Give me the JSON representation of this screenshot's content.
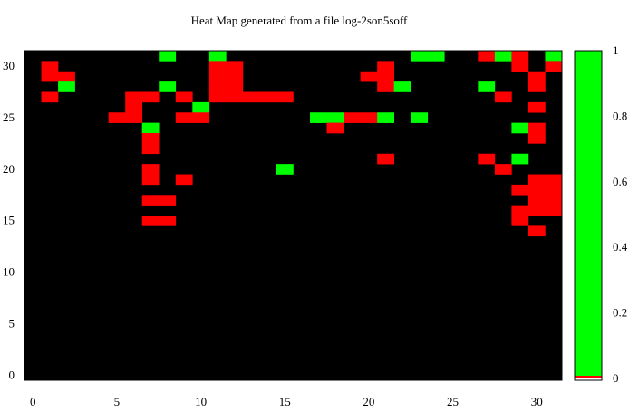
{
  "chart_data": {
    "type": "heatmap",
    "title": "Heat Map generated from a file log-2son5soff",
    "xlabel": "",
    "ylabel": "",
    "xlim": [
      -0.5,
      31.5
    ],
    "ylim": [
      -0.5,
      31.5
    ],
    "x_ticks": [
      "0",
      "5",
      "10",
      "15",
      "20",
      "25",
      "30"
    ],
    "y_ticks": [
      "0",
      "5",
      "10",
      "15",
      "20",
      "25",
      "30"
    ],
    "colorbar": {
      "range": [
        0,
        1
      ],
      "ticks": [
        "0",
        "0.2",
        "0.4",
        "0.6",
        "0.8",
        "1"
      ],
      "low_color": "#ff0000",
      "high_color": "#00ff00"
    },
    "colors": {
      "background": "#000000",
      "value_0": "#ff0000",
      "value_1": "#00ff00",
      "frame": "#000000"
    },
    "encoding": {
      "0": "no data (black)",
      "1": "value 0 (red)",
      "2": "value 1 (green)"
    },
    "grid_rows_top_to_bottom": [
      "00000000200200000000000220012102",
      "01000000000110000000010000000101",
      "01100000000110000000110000000010",
      "00200000200110000000012000020010",
      "01000011010111110000000000001000",
      "00000010002000000000000000000010",
      "00000110011000000221120200000000",
      "00000002000000000010000000000210",
      "00000001000000000000000000000010",
      "00000001000000000000000000000000",
      "00000000000000000000010000010200",
      "00000001000000020000000000001000",
      "00000001010000000000000000000011",
      "00000000000000000000000000000111",
      "00000001100000000000000000000011",
      "00000000000000000000000000000111",
      "00000001100000000000000000000100",
      "00000000000000000000000000000010",
      "00000000000000000000000000000000",
      "00000000000000000000000000000000",
      "00000000000000000000000000000000",
      "00000000000000000000000000000000",
      "00000000000000000000000000000000",
      "00000000000000000000000000000000",
      "00000000000000000000000000000000",
      "00000000000000000000000000000000",
      "00000000000000000000000000000000",
      "00000000000000000000000000000000",
      "00000000000000000000000000000000",
      "00000000000000000000000000000000",
      "00000000000000000000000000000000",
      "00000000000000000000000000000000"
    ]
  }
}
